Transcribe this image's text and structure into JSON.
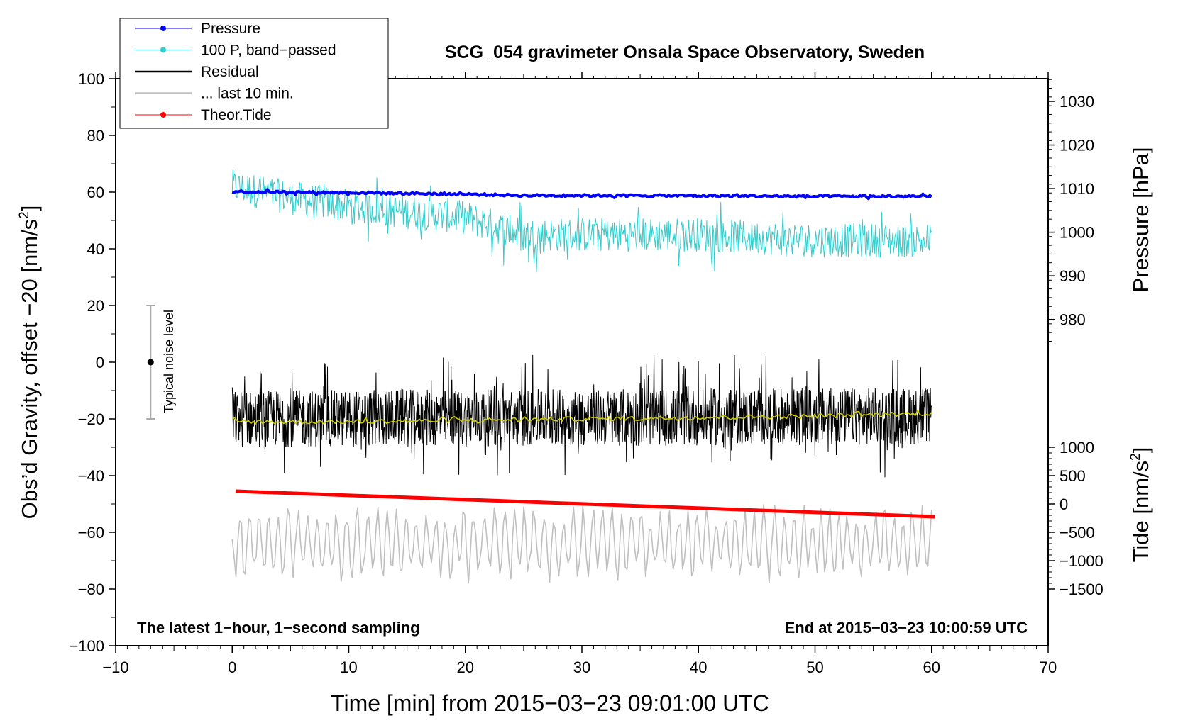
{
  "chart_data": {
    "type": "line",
    "title": "SCG_054 gravimeter Onsala Space Observatory, Sweden",
    "xlabel": "Time [min] from 2015−03−23 09:01:00 UTC",
    "ylabel_left": "Obs’d Gravity, offset −20 [nm/s2]",
    "ylabel_left_main": "Obs’d Gravity, offset −20 [nm/s",
    "ylabel_left_sup": "2",
    "ylabel_left_end": "]",
    "ylabel_right_pressure": "Pressure [hPa]",
    "ylabel_right_tide_main": "Tide [nm/s",
    "ylabel_right_tide_sup": "2",
    "ylabel_right_tide_end": "]",
    "xlim": [
      -10,
      70
    ],
    "ylim": [
      -100,
      100
    ],
    "x_ticks": [
      "−10",
      "0",
      "10",
      "20",
      "30",
      "40",
      "50",
      "60",
      "70"
    ],
    "x_tick_values": [
      -10,
      0,
      10,
      20,
      30,
      40,
      50,
      60,
      70
    ],
    "y_ticks": [
      "100",
      "80",
      "60",
      "40",
      "20",
      "0",
      "−20",
      "−40",
      "−60",
      "−80",
      "−100"
    ],
    "y_tick_values": [
      100,
      80,
      60,
      40,
      20,
      0,
      -20,
      -40,
      -60,
      -80,
      -100
    ],
    "pressure_axis": {
      "ticks": [
        "1030",
        "1020",
        "1010",
        "1000",
        "990",
        "980"
      ],
      "values": [
        1030,
        1020,
        1010,
        1000,
        990,
        980
      ],
      "left_value_at_1030": 92,
      "left_per_hpa": 1.5385
    },
    "tide_axis": {
      "ticks": [
        "1000",
        "500",
        "0",
        "−500",
        "−1000",
        "−1500"
      ],
      "values": [
        1000,
        500,
        0,
        -500,
        -1000,
        -1500
      ],
      "left_value_at_0": -50,
      "left_per_unit": 0.02
    },
    "noise_bar": {
      "label": "Typical noise level",
      "x": -7,
      "center": 0,
      "half_range": 20
    },
    "annotation_left": "The latest 1−hour, 1−second sampling",
    "annotation_right": "End at 2015−03−23 10:00:59 UTC",
    "legend": [
      {
        "label": "Pressure",
        "color": "#0000ff",
        "marker": true
      },
      {
        "label": "100 P, band−passed",
        "color": "#33cccc",
        "marker": true
      },
      {
        "label": "Residual",
        "color": "#000000",
        "marker": false
      },
      {
        "label": "... last 10 min.",
        "color": "#c0c0c0",
        "marker": false
      },
      {
        "label": "Theor.Tide",
        "color": "#ff0000",
        "marker": true
      }
    ],
    "series": [
      {
        "name": "Pressure",
        "color": "#0000ff",
        "x": [
          0,
          10,
          20,
          25,
          30,
          40,
          50,
          60
        ],
        "y": [
          60.2,
          59.8,
          59.3,
          58.8,
          58.8,
          58.7,
          58.5,
          58.5
        ],
        "noise": 0.4
      },
      {
        "name": "100 P, band−passed",
        "color": "#33cccc",
        "x": [
          0,
          5,
          10,
          15,
          20,
          25,
          30,
          40,
          50,
          60
        ],
        "y": [
          62,
          58,
          55,
          53,
          51,
          45,
          45,
          45,
          43,
          43
        ],
        "noise": 6
      },
      {
        "name": "Residual",
        "color": "#000000",
        "x": [
          0,
          60
        ],
        "y": [
          -20,
          -19
        ],
        "noise": 10
      },
      {
        "name": "smoothed residual",
        "color": "#cccc00",
        "x": [
          0,
          10,
          20,
          30,
          40,
          50,
          60
        ],
        "y": [
          -21,
          -21,
          -20.5,
          -20,
          -19.5,
          -19,
          -18
        ],
        "noise": 0.8
      },
      {
        "name": "... last 10 min.",
        "color": "#c0c0c0",
        "x": [
          0,
          60
        ],
        "y": [
          -64,
          -64
        ],
        "noise": 10
      },
      {
        "name": "Theor.Tide",
        "color": "#ff0000",
        "x": [
          0.3,
          60.3
        ],
        "y": [
          -45.5,
          -54.5
        ],
        "noise": 0
      }
    ]
  }
}
